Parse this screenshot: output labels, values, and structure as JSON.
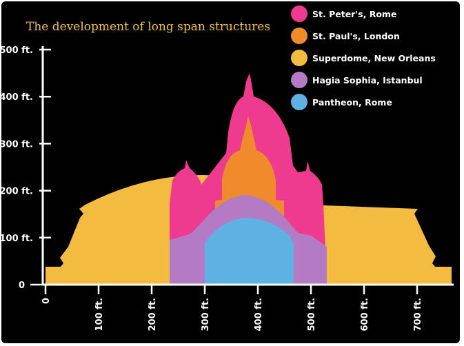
{
  "title": "The development of long span structures",
  "colors": {
    "background": "#010101",
    "axis": "#ffffff",
    "title": "#f3c242",
    "st_peters": "#ee3a8f",
    "st_pauls": "#ef8b2d",
    "superdome": "#f3bb3f",
    "hagia_sophia": "#b47ac4",
    "pantheon": "#5eb1e3"
  },
  "legend": [
    {
      "key": "st_peters",
      "label": "St. Peter's, Rome",
      "icon": "pink-swatch-icon"
    },
    {
      "key": "st_pauls",
      "label": "St. Paul's, London",
      "icon": "orange-swatch-icon"
    },
    {
      "key": "superdome",
      "label": "Superdome, New Orleans",
      "icon": "yellow-swatch-icon"
    },
    {
      "key": "hagia_sophia",
      "label": "Hagia Sophia, Istanbul",
      "icon": "purple-swatch-icon"
    },
    {
      "key": "pantheon",
      "label": "Pantheon, Rome",
      "icon": "blue-swatch-icon"
    }
  ],
  "y_axis": {
    "ticks": [
      "0",
      "100 ft.",
      "200 ft.",
      "300 ft.",
      "400 ft.",
      "500 ft."
    ]
  },
  "x_axis": {
    "ticks": [
      "0",
      "100 ft.",
      "200 ft.",
      "300 ft.",
      "400 ft.",
      "500 ft.",
      "600 ft.",
      "700 ft."
    ]
  }
}
